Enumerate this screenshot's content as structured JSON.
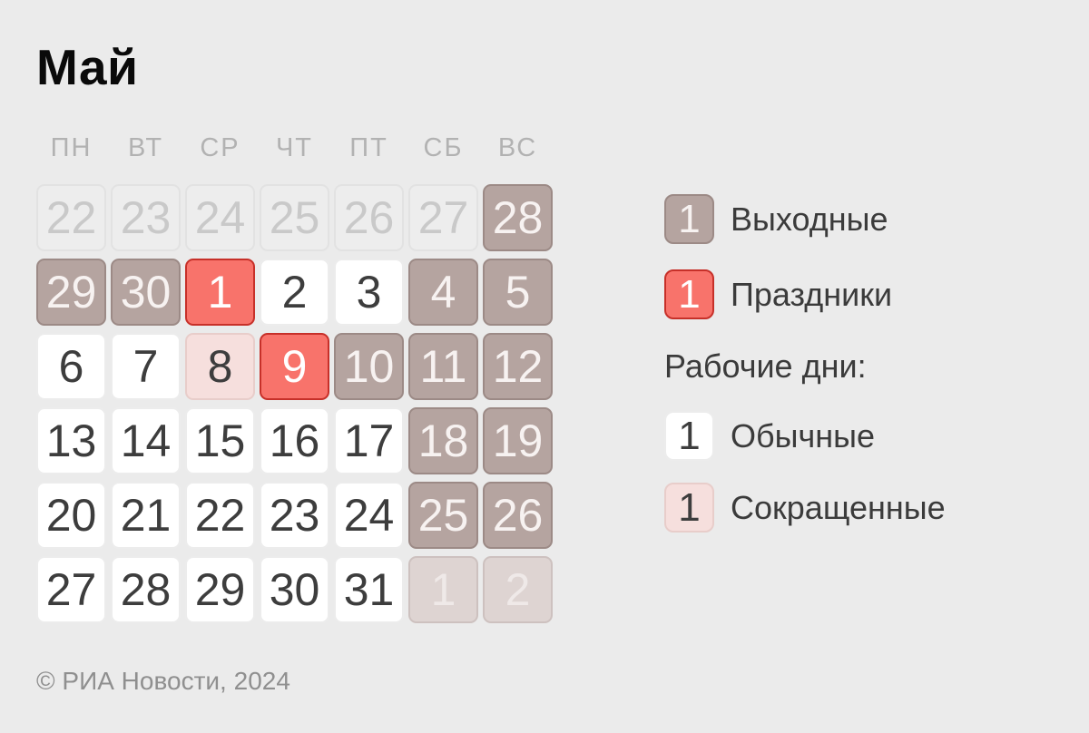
{
  "app": {
    "title": "Май",
    "footer": "© РИА Новости, 2024"
  },
  "calendar": {
    "weekdays": [
      "ПН",
      "ВТ",
      "СР",
      "ЧТ",
      "ПТ",
      "СБ",
      "ВС"
    ],
    "cells": [
      {
        "day": "22",
        "type": "prev"
      },
      {
        "day": "23",
        "type": "prev"
      },
      {
        "day": "24",
        "type": "prev"
      },
      {
        "day": "25",
        "type": "prev"
      },
      {
        "day": "26",
        "type": "prev"
      },
      {
        "day": "27",
        "type": "prev"
      },
      {
        "day": "28",
        "type": "weekend"
      },
      {
        "day": "29",
        "type": "weekend"
      },
      {
        "day": "30",
        "type": "weekend"
      },
      {
        "day": "1",
        "type": "holiday"
      },
      {
        "day": "2",
        "type": "regular"
      },
      {
        "day": "3",
        "type": "regular"
      },
      {
        "day": "4",
        "type": "weekend"
      },
      {
        "day": "5",
        "type": "weekend"
      },
      {
        "day": "6",
        "type": "regular"
      },
      {
        "day": "7",
        "type": "regular"
      },
      {
        "day": "8",
        "type": "short"
      },
      {
        "day": "9",
        "type": "holiday"
      },
      {
        "day": "10",
        "type": "weekend"
      },
      {
        "day": "11",
        "type": "weekend"
      },
      {
        "day": "12",
        "type": "weekend"
      },
      {
        "day": "13",
        "type": "regular"
      },
      {
        "day": "14",
        "type": "regular"
      },
      {
        "day": "15",
        "type": "regular"
      },
      {
        "day": "16",
        "type": "regular"
      },
      {
        "day": "17",
        "type": "regular"
      },
      {
        "day": "18",
        "type": "weekend"
      },
      {
        "day": "19",
        "type": "weekend"
      },
      {
        "day": "20",
        "type": "regular"
      },
      {
        "day": "21",
        "type": "regular"
      },
      {
        "day": "22",
        "type": "regular"
      },
      {
        "day": "23",
        "type": "regular"
      },
      {
        "day": "24",
        "type": "regular"
      },
      {
        "day": "25",
        "type": "weekend"
      },
      {
        "day": "26",
        "type": "weekend"
      },
      {
        "day": "27",
        "type": "regular"
      },
      {
        "day": "28",
        "type": "regular"
      },
      {
        "day": "29",
        "type": "regular"
      },
      {
        "day": "30",
        "type": "regular"
      },
      {
        "day": "31",
        "type": "regular"
      },
      {
        "day": "1",
        "type": "next"
      },
      {
        "day": "2",
        "type": "next"
      }
    ]
  },
  "legend": {
    "items_top": [
      {
        "value": "1",
        "label": "Выходные",
        "type": "weekend"
      },
      {
        "value": "1",
        "label": "Праздники",
        "type": "holiday"
      }
    ],
    "working_days_header": "Рабочие дни:",
    "items_bottom": [
      {
        "value": "1",
        "label": "Обычные",
        "type": "regular"
      },
      {
        "value": "1",
        "label": "Сокращенные",
        "type": "short"
      }
    ]
  },
  "colors": {
    "bg": "#ebebeb",
    "ink": "#0a0a0a",
    "weekday_ink": "#b2b2b2",
    "label_ink": "#3b3b3b",
    "footer_ink": "#8f8f8f",
    "weekend_fill": "#b5a4a0",
    "weekend_border": "#9c8a86",
    "weekend_ink": "#f7f2f1",
    "holiday_fill": "#f8736b",
    "holiday_border": "#c73029",
    "holiday_ink": "#ffffff",
    "regular_fill": "#ffffff",
    "regular_border": "#ececec",
    "regular_ink": "#3d3d3d",
    "short_fill": "#f6dfdd",
    "short_border": "#e8cdca",
    "prev_fill": "#ededed",
    "prev_border": "#e2e2e2",
    "prev_ink": "#c9c9c9",
    "next_fill": "#ded4d2",
    "next_border": "#cdc1bf",
    "next_ink": "#efe9e8"
  }
}
